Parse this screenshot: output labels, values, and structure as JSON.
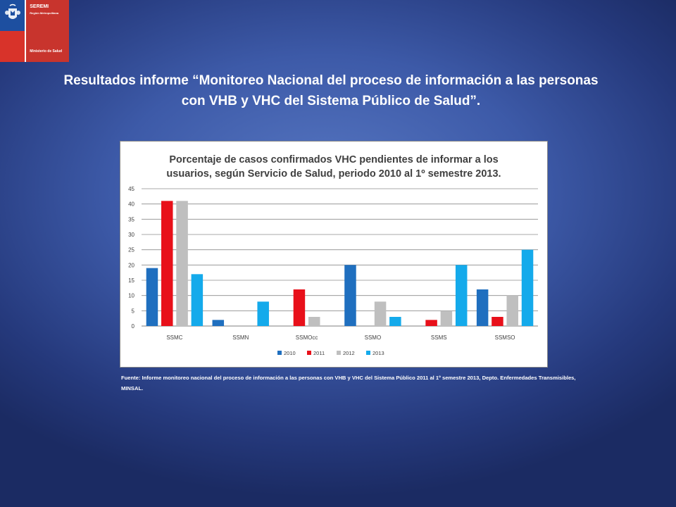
{
  "logo": {
    "line1": "SEREMI",
    "line2": "Región Metropolitana",
    "line3": "Ministerio de Salud",
    "icon": "chile-coat-of-arms-icon",
    "colors": {
      "blue": "#1d4fa0",
      "red": "#c8342d"
    }
  },
  "page": {
    "title": "Resultados informe “Monitoreo Nacional del proceso de información a las personas con VHB y VHC del Sistema Público de Salud”.",
    "source": "Fuente: Informe monitoreo nacional del proceso de información a las personas con VHB y VHC del Sistema Público 2011 al 1º semestre 2013, Depto. Enfermedades Transmisibles, MINSAL."
  },
  "chart_data": {
    "type": "bar",
    "title": "Porcentaje de casos confirmados VHC pendientes de informar a los usuarios, según Servicio de Salud, periodo 2010 al 1º semestre 2013.",
    "categories": [
      "SSMC",
      "SSMN",
      "SSMOcc",
      "SSMO",
      "SSMS",
      "SSMSO"
    ],
    "series": [
      {
        "name": "2010",
        "color": "#1f6fbf",
        "values": [
          19,
          2,
          0,
          20,
          0,
          12
        ]
      },
      {
        "name": "2011",
        "color": "#e8101a",
        "values": [
          41,
          0,
          12,
          0,
          2,
          3
        ]
      },
      {
        "name": "2012",
        "color": "#bfbfbf",
        "values": [
          41,
          0,
          3,
          8,
          5,
          10
        ]
      },
      {
        "name": "2013",
        "color": "#14aaeb",
        "values": [
          17,
          8,
          0,
          3,
          20,
          25
        ]
      }
    ],
    "ylim": [
      0,
      45
    ],
    "yticks": [
      "0",
      "5",
      "10",
      "15",
      "20",
      "25",
      "30",
      "35",
      "40",
      "45"
    ],
    "grid": true,
    "legend": "bottom"
  }
}
